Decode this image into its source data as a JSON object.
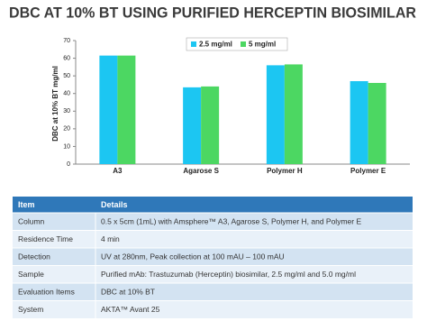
{
  "title": "DBC AT 10% BT USING PURIFIED HERCEPTIN BIOSIMILAR",
  "chart_data": {
    "type": "bar",
    "y_label": "DBC at 10% BT mg/ml",
    "categories": [
      "A3",
      "Agarose S",
      "Polymer H",
      "Polymer E"
    ],
    "series": [
      {
        "name": "2.5 mg/ml",
        "color": "#1cc6f2",
        "values": [
          61.5,
          43.5,
          56,
          47
        ]
      },
      {
        "name": "5 mg/ml",
        "color": "#4cd762",
        "values": [
          61.5,
          44,
          56.5,
          46
        ]
      }
    ],
    "ylim": [
      0,
      70
    ],
    "yticks": [
      0,
      10,
      20,
      30,
      40,
      50,
      60,
      70
    ],
    "legend": "top"
  },
  "table": {
    "header": [
      "Item",
      "Details"
    ],
    "rows": [
      [
        "Column",
        "0.5 x 5cm (1mL) with Amsphere™ A3, Agarose S, Polymer H, and Polymer E"
      ],
      [
        "Residence Time",
        "4 min"
      ],
      [
        "Detection",
        "UV at 280nm, Peak collection at 100 mAU – 100 mAU"
      ],
      [
        "Sample",
        "Purified mAb: Trastuzumab (Herceptin) biosimilar, 2.5 mg/ml and 5.0 mg/ml"
      ],
      [
        "Evaluation Items",
        "DBC at 10% BT"
      ],
      [
        "System",
        "AKTA™ Avant 25"
      ]
    ]
  }
}
